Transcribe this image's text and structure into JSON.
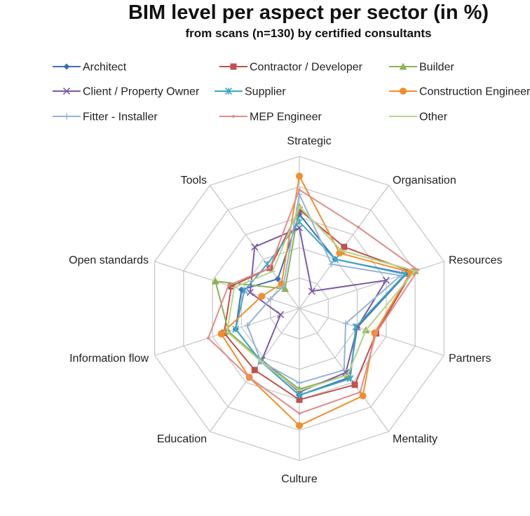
{
  "chart_data": {
    "type": "radar",
    "title": "BIM level per aspect per sector (in %)",
    "subtitle": "from scans (n=130) by certified consultants",
    "categories": [
      "Strategic",
      "Organisation",
      "Resources",
      "Partners",
      "Mentality",
      "Culture",
      "Education",
      "Information flow",
      "Open standards",
      "Tools"
    ],
    "rlim": [
      0,
      100
    ],
    "grid": true,
    "legend": "top",
    "series": [
      {
        "name": "Architect",
        "color": "#3F6FB5",
        "marker": "diamond",
        "values": [
          62,
          40,
          74,
          40,
          56,
          57,
          43,
          44,
          40,
          24
        ]
      },
      {
        "name": "Contractor / Developer",
        "color": "#C0504D",
        "marker": "square",
        "values": [
          65,
          50,
          78,
          53,
          62,
          60,
          50,
          52,
          47,
          33
        ]
      },
      {
        "name": "Builder",
        "color": "#8DB255",
        "marker": "triangle",
        "values": [
          67,
          47,
          80,
          46,
          54,
          53,
          42,
          49,
          58,
          16
        ]
      },
      {
        "name": "Client / Property Owner",
        "color": "#7B5BA6",
        "marker": "x",
        "values": [
          53,
          14,
          60,
          40,
          52,
          55,
          42,
          13,
          34,
          50
        ]
      },
      {
        "name": "Supplier",
        "color": "#3FA8C6",
        "marker": "star",
        "values": [
          57,
          40,
          73,
          39,
          57,
          57,
          43,
          44,
          38,
          36
        ]
      },
      {
        "name": "Construction Engineer",
        "color": "#F28E2B",
        "marker": "circle",
        "values": [
          87,
          45,
          77,
          52,
          71,
          77,
          56,
          54,
          26,
          20
        ]
      },
      {
        "name": "Fitter - Installer",
        "color": "#95B3D7",
        "marker": "plus",
        "values": [
          75,
          36,
          70,
          32,
          50,
          49,
          43,
          36,
          20,
          18
        ]
      },
      {
        "name": "MEP Engineer",
        "color": "#E08C8C",
        "marker": "dot",
        "values": [
          78,
          66,
          82,
          53,
          68,
          69,
          56,
          63,
          49,
          33
        ]
      },
      {
        "name": "Other",
        "color": "#B9D58E",
        "marker": "dash",
        "values": [
          67,
          47,
          80,
          46,
          54,
          54,
          43,
          50,
          45,
          30
        ]
      }
    ]
  }
}
